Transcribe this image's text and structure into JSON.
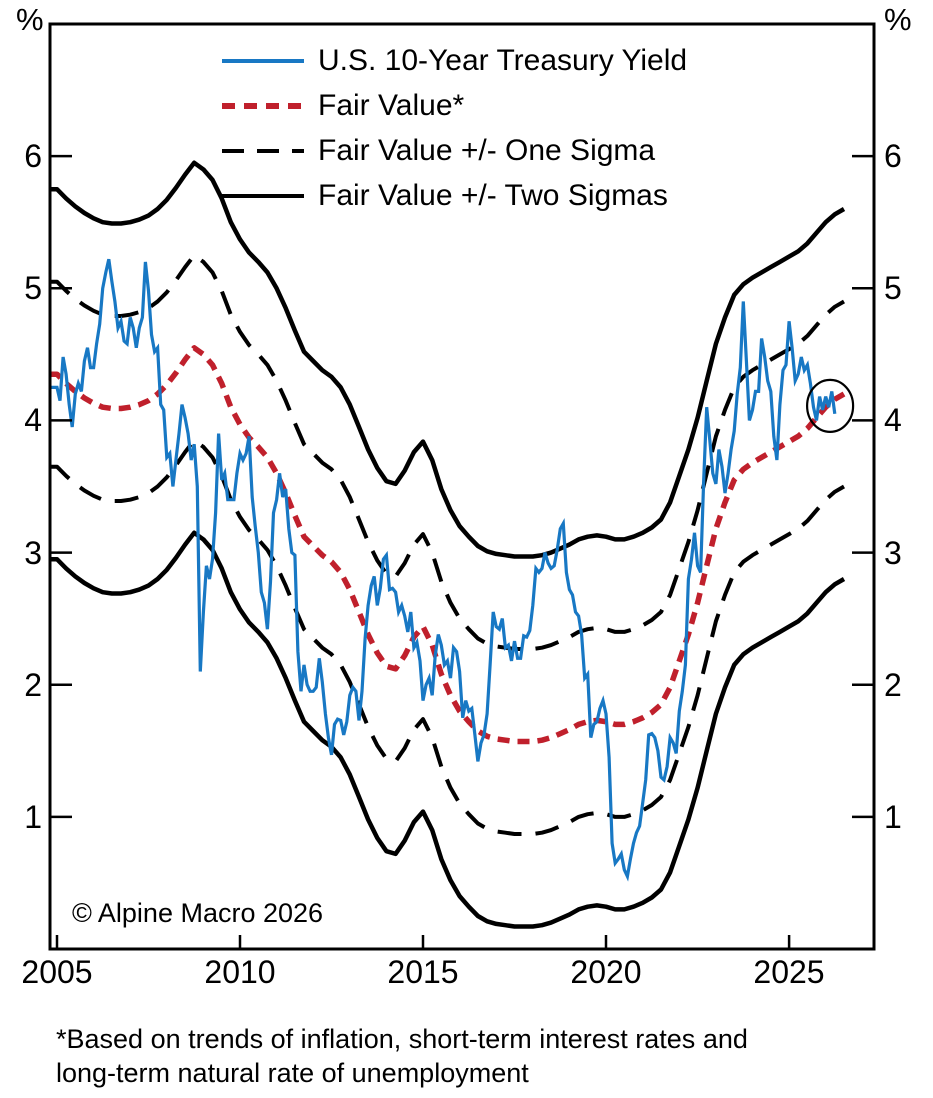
{
  "chart_data": {
    "type": "line",
    "title": "",
    "y_axis": {
      "unit_label": "%",
      "ticks": [
        1,
        2,
        3,
        4,
        5,
        6
      ],
      "range": [
        0,
        7.0
      ],
      "dual_sided": true,
      "grid": false
    },
    "x_axis": {
      "ticks": [
        2005,
        2010,
        2015,
        2020,
        2025
      ],
      "range": [
        2004.81,
        2027.32
      ]
    },
    "colors": {
      "blue": "#1878c4",
      "red": "#c0202c",
      "black": "#000000"
    },
    "legend": [
      {
        "label": "U.S. 10-Year Treasury Yield",
        "style": "solid",
        "color": "#1878c4"
      },
      {
        "label": "Fair Value*",
        "style": "dash-short",
        "color": "#c0202c"
      },
      {
        "label": "Fair Value +/- One Sigma",
        "style": "dash-long",
        "color": "#000000"
      },
      {
        "label": "Fair Value +/- Two Sigmas",
        "style": "solid",
        "color": "#000000"
      }
    ],
    "sigma_offsets": {
      "one": 0.7,
      "two": 1.4
    },
    "series": [
      {
        "name": "U.S. 10-Year Treasury Yield",
        "color": "#1878c4",
        "x_start": 2005.0,
        "x_step": 0.083333,
        "values": [
          4.25,
          4.15,
          4.48,
          4.35,
          4.12,
          3.95,
          4.2,
          4.28,
          4.22,
          4.45,
          4.55,
          4.4,
          4.4,
          4.58,
          4.73,
          5.0,
          5.12,
          5.22,
          5.05,
          4.9,
          4.7,
          4.75,
          4.6,
          4.58,
          4.78,
          4.7,
          4.55,
          4.7,
          4.78,
          5.2,
          4.98,
          4.65,
          4.52,
          4.55,
          4.12,
          4.08,
          3.72,
          3.75,
          3.5,
          3.7,
          3.9,
          4.12,
          4.02,
          3.9,
          3.7,
          3.82,
          3.5,
          2.1,
          2.55,
          2.9,
          2.8,
          2.95,
          3.3,
          3.9,
          3.55,
          3.6,
          3.4,
          3.4,
          3.4,
          3.6,
          3.75,
          3.7,
          3.75,
          3.88,
          3.42,
          3.2,
          3.0,
          2.7,
          2.62,
          2.42,
          2.78,
          3.3,
          3.4,
          3.6,
          3.42,
          3.48,
          3.18,
          3.0,
          2.98,
          2.25,
          1.95,
          2.15,
          2.0,
          1.95,
          1.95,
          1.98,
          2.2,
          2.02,
          1.78,
          1.6,
          1.47,
          1.7,
          1.74,
          1.73,
          1.62,
          1.72,
          1.92,
          1.98,
          1.95,
          1.73,
          1.95,
          2.35,
          2.6,
          2.75,
          2.82,
          2.6,
          2.73,
          2.95,
          2.98,
          2.72,
          2.73,
          2.7,
          2.55,
          2.6,
          2.52,
          2.4,
          2.55,
          2.28,
          2.32,
          2.18,
          1.88,
          2.0,
          2.05,
          1.92,
          2.22,
          2.38,
          2.3,
          2.15,
          2.18,
          2.05,
          2.28,
          2.25,
          2.1,
          1.75,
          1.88,
          1.8,
          1.82,
          1.62,
          1.42,
          1.56,
          1.62,
          1.78,
          2.15,
          2.55,
          2.44,
          2.42,
          2.5,
          2.28,
          2.3,
          2.18,
          2.33,
          2.2,
          2.2,
          2.37,
          2.36,
          2.41,
          2.6,
          2.88,
          2.85,
          2.88,
          3.0,
          2.92,
          2.88,
          2.9,
          3.02,
          3.18,
          3.22,
          2.85,
          2.72,
          2.68,
          2.55,
          2.52,
          2.38,
          2.05,
          2.08,
          1.6,
          1.7,
          1.72,
          1.82,
          1.88,
          1.78,
          1.45,
          0.8,
          0.65,
          0.68,
          0.72,
          0.6,
          0.55,
          0.68,
          0.8,
          0.88,
          0.93,
          1.1,
          1.28,
          1.62,
          1.63,
          1.6,
          1.5,
          1.3,
          1.28,
          1.38,
          1.6,
          1.56,
          1.48,
          1.8,
          1.95,
          2.15,
          2.8,
          2.95,
          3.15,
          2.9,
          2.85,
          3.55,
          4.1,
          3.85,
          3.6,
          3.52,
          3.78,
          3.65,
          3.45,
          3.6,
          3.78,
          3.92,
          4.2,
          4.4,
          4.9,
          4.45,
          4.0,
          4.08,
          4.22,
          4.22,
          4.62,
          4.48,
          4.3,
          4.22,
          3.88,
          3.7,
          4.12,
          4.38,
          4.42,
          4.75,
          4.55,
          4.3,
          4.35,
          4.48,
          4.38,
          4.42,
          4.28,
          4.1,
          4.0,
          4.18,
          4.08,
          4.18,
          4.1,
          4.22,
          4.05
        ]
      },
      {
        "name": "Fair Value",
        "color": "#c0202c",
        "x_start": 2005.0,
        "x_step": 0.25,
        "values": [
          4.35,
          4.28,
          4.22,
          4.17,
          4.13,
          4.1,
          4.09,
          4.09,
          4.1,
          4.12,
          4.15,
          4.2,
          4.27,
          4.36,
          4.46,
          4.55,
          4.5,
          4.42,
          4.28,
          4.1,
          3.97,
          3.87,
          3.8,
          3.72,
          3.6,
          3.45,
          3.28,
          3.12,
          3.05,
          2.98,
          2.93,
          2.85,
          2.72,
          2.55,
          2.38,
          2.24,
          2.14,
          2.12,
          2.22,
          2.36,
          2.44,
          2.3,
          2.08,
          1.92,
          1.8,
          1.72,
          1.65,
          1.61,
          1.59,
          1.58,
          1.57,
          1.57,
          1.57,
          1.58,
          1.6,
          1.63,
          1.66,
          1.7,
          1.72,
          1.73,
          1.72,
          1.7,
          1.7,
          1.72,
          1.75,
          1.79,
          1.85,
          1.98,
          2.18,
          2.38,
          2.62,
          2.9,
          3.18,
          3.38,
          3.55,
          3.63,
          3.68,
          3.72,
          3.76,
          3.8,
          3.84,
          3.88,
          3.94,
          4.02,
          4.1,
          4.16,
          4.2
        ]
      }
    ],
    "annotation_circle": {
      "x": 2026.12,
      "y": 4.11
    },
    "copyright": "© Alpine Macro 2026",
    "footnote_line1": "*Based on trends of inflation, short-term interest rates and",
    "footnote_line2": "long-term natural rate of unemployment"
  }
}
